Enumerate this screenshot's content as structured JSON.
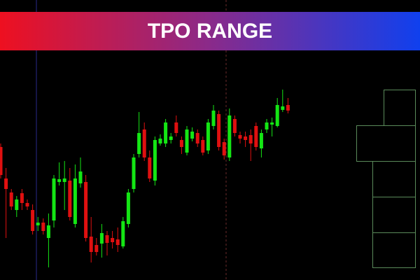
{
  "chart_data": {
    "type": "candlestick",
    "title": "TPO RANGE",
    "ylim": [
      0,
      400
    ],
    "up_color": "#14e614",
    "down_color": "#e01010",
    "open": [
      190,
      145,
      125,
      100,
      124,
      110,
      100,
      78,
      82,
      60,
      85,
      140,
      140,
      142,
      80,
      138,
      140,
      62,
      50,
      52,
      64,
      60,
      58,
      48,
      80,
      130,
      180,
      215,
      175,
      142,
      195,
      195,
      200,
      225,
      200,
      182,
      202,
      210,
      200,
      185,
      220,
      237,
      197,
      175,
      230,
      207,
      205,
      207,
      220,
      188,
      215,
      222,
      220,
      243,
      250
    ],
    "high": [
      195,
      160,
      130,
      120,
      130,
      115,
      108,
      90,
      88,
      95,
      150,
      168,
      170,
      160,
      165,
      175,
      150,
      90,
      60,
      80,
      70,
      70,
      75,
      90,
      130,
      180,
      240,
      225,
      185,
      205,
      208,
      230,
      210,
      235,
      205,
      220,
      218,
      215,
      205,
      230,
      250,
      242,
      202,
      245,
      235,
      212,
      212,
      215,
      225,
      215,
      230,
      232,
      260,
      272,
      260
    ],
    "low": [
      145,
      60,
      100,
      90,
      100,
      100,
      65,
      70,
      65,
      18,
      75,
      135,
      100,
      85,
      75,
      132,
      55,
      25,
      35,
      32,
      35,
      45,
      40,
      45,
      75,
      125,
      175,
      170,
      140,
      135,
      192,
      190,
      195,
      205,
      180,
      178,
      198,
      190,
      178,
      180,
      215,
      185,
      172,
      170,
      205,
      195,
      190,
      170,
      185,
      175,
      210,
      205,
      218,
      240,
      238
    ],
    "close": [
      150,
      130,
      105,
      115,
      110,
      105,
      70,
      82,
      70,
      78,
      145,
      144,
      145,
      90,
      145,
      155,
      60,
      40,
      40,
      67,
      53,
      54,
      50,
      84,
      125,
      175,
      210,
      175,
      145,
      200,
      202,
      225,
      205,
      210,
      190,
      215,
      212,
      195,
      182,
      225,
      242,
      190,
      178,
      235,
      210,
      202,
      200,
      195,
      190,
      210,
      225,
      225,
      250,
      248,
      242
    ]
  }
}
